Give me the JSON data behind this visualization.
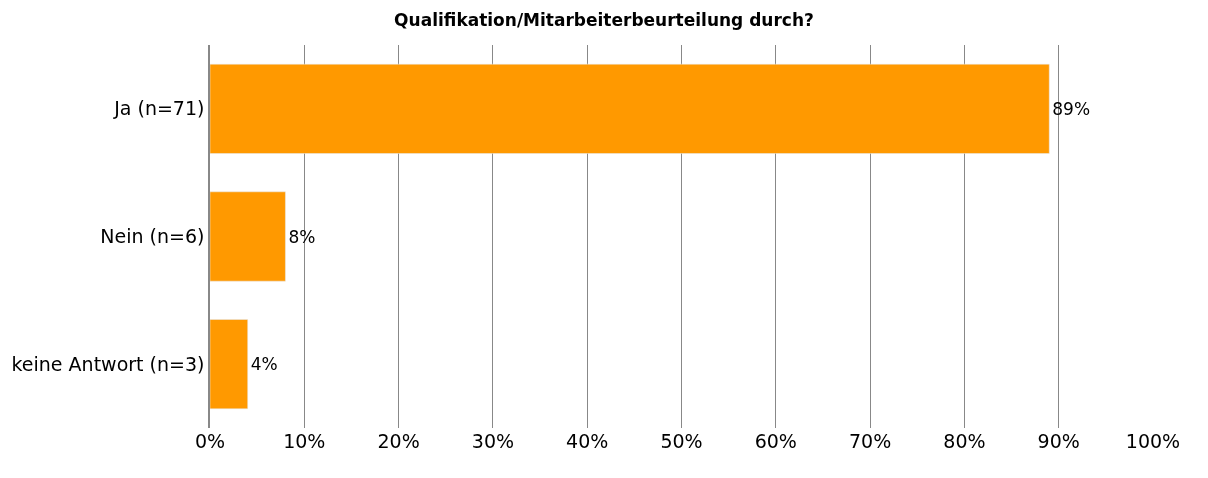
{
  "chart_data": {
    "type": "bar",
    "orientation": "horizontal",
    "title": "Qualifikation/Mitarbeiterbeurteilung durch?",
    "categories": [
      "Ja (n=71)",
      "Nein (n=6)",
      "keine Antwort (n=3)"
    ],
    "values": [
      89,
      8,
      4
    ],
    "value_labels": [
      "89%",
      "8%",
      "4%"
    ],
    "color": "#ff9900",
    "xlim": [
      0,
      100
    ],
    "xticks": [
      {
        "value": 0,
        "label": "0%"
      },
      {
        "value": 10,
        "label": "10%"
      },
      {
        "value": 20,
        "label": "20%"
      },
      {
        "value": 30,
        "label": "30%"
      },
      {
        "value": 40,
        "label": "40%"
      },
      {
        "value": 50,
        "label": "50%"
      },
      {
        "value": 60,
        "label": "60%"
      },
      {
        "value": 70,
        "label": "70%"
      },
      {
        "value": 80,
        "label": "80%"
      },
      {
        "value": 90,
        "label": "90%"
      },
      {
        "value": 100,
        "label": "100%"
      }
    ],
    "grid": "x",
    "legend": false
  }
}
